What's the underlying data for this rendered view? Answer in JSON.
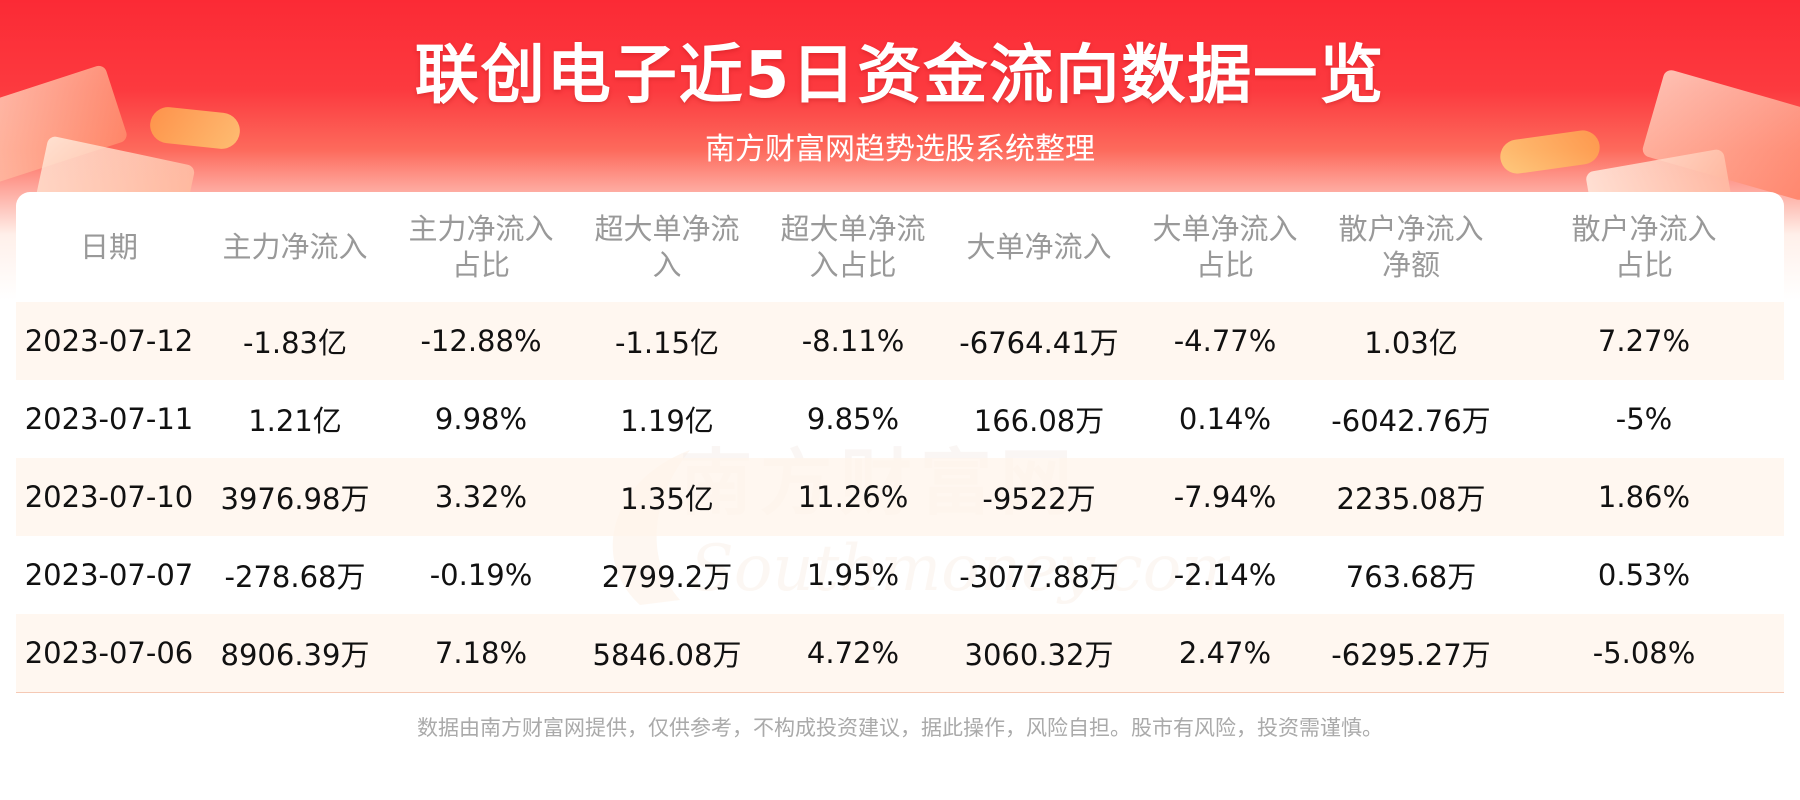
{
  "header": {
    "title": "联创电子近5日资金流向数据一览",
    "subtitle": "南方财富网趋势选股系统整理"
  },
  "chart_data": {
    "type": "table",
    "columns": [
      "日期",
      "主力净流入",
      "主力净流入\n占比",
      "超大单净流\n入",
      "超大单净流\n入占比",
      "大单净流入",
      "大单净流入\n占比",
      "散户净流入\n净额",
      "散户净流入\n占比"
    ],
    "rows": [
      [
        "2023-07-12",
        "-1.83亿",
        "-12.88%",
        "-1.15亿",
        "-8.11%",
        "-6764.41万",
        "-4.77%",
        "1.03亿",
        "7.27%"
      ],
      [
        "2023-07-11",
        "1.21亿",
        "9.98%",
        "1.19亿",
        "9.85%",
        "166.08万",
        "0.14%",
        "-6042.76万",
        "-5%"
      ],
      [
        "2023-07-10",
        "3976.98万",
        "3.32%",
        "1.35亿",
        "11.26%",
        "-9522万",
        "-7.94%",
        "2235.08万",
        "1.86%"
      ],
      [
        "2023-07-07",
        "-278.68万",
        "-0.19%",
        "2799.2万",
        "1.95%",
        "-3077.88万",
        "-2.14%",
        "763.68万",
        "0.53%"
      ],
      [
        "2023-07-06",
        "8906.39万",
        "7.18%",
        "5846.08万",
        "4.72%",
        "3060.32万",
        "2.47%",
        "-6295.27万",
        "-5.08%"
      ]
    ]
  },
  "watermark": {
    "cn": "南方财富网",
    "en": "Southmoney.com"
  },
  "footer": {
    "disclaimer": "数据由南方财富网提供，仅供参考，不构成投资建议，据此操作，风险自担。股市有风险，投资需谨慎。"
  },
  "colors": {
    "header_red": "#fb2a35",
    "header_text": "#ffffff",
    "column_header_text": "#999999",
    "cell_text": "#111111",
    "row_stripe": "#fff6ee",
    "footer_text": "#aaaaaa"
  }
}
